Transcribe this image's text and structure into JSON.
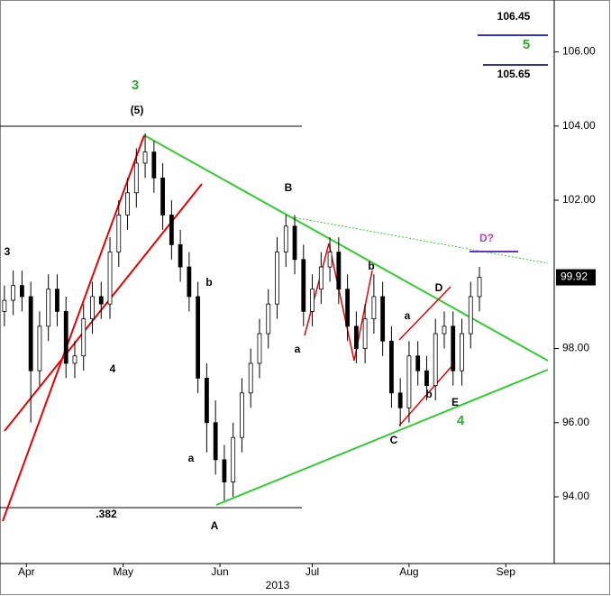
{
  "chart_data": {
    "type": "candlestick",
    "x": [
      0,
      2,
      4,
      6,
      8,
      10,
      12,
      14,
      16,
      18,
      20,
      22,
      24,
      26,
      28,
      30,
      32,
      34,
      36,
      38,
      40,
      42,
      44,
      46,
      48,
      50,
      52,
      54,
      56,
      58,
      60,
      62,
      64,
      66,
      68,
      70,
      72,
      74,
      76,
      78,
      80,
      82,
      84,
      86,
      88,
      90,
      92,
      94,
      96,
      98,
      100,
      102,
      104,
      106,
      108
    ],
    "open": [
      99.0,
      99.3,
      99.7,
      99.4,
      97.4,
      98.6,
      99.6,
      99.0,
      97.6,
      97.8,
      98.8,
      99.4,
      99.2,
      100.6,
      101.6,
      102.2,
      103.0,
      103.3,
      102.6,
      101.6,
      100.8,
      100.2,
      99.4,
      97.2,
      96.0,
      95.0,
      94.4,
      95.6,
      96.8,
      97.6,
      98.4,
      99.2,
      100.6,
      101.3,
      100.4,
      99.0,
      99.6,
      100.2,
      100.6,
      99.6,
      98.6,
      98.0,
      98.8,
      99.4,
      98.2,
      96.8,
      96.4,
      97.8,
      97.4,
      97.0,
      98.4,
      98.6,
      97.4,
      98.4,
      99.4
    ],
    "high": [
      99.7,
      100.1,
      100.1,
      99.8,
      99.0,
      100.0,
      100.0,
      99.4,
      98.2,
      99.2,
      99.8,
      99.8,
      101.0,
      102.0,
      102.6,
      103.4,
      103.8,
      103.6,
      103.0,
      102.0,
      101.2,
      100.6,
      99.8,
      97.6,
      96.6,
      95.4,
      96.0,
      97.2,
      98.0,
      98.8,
      99.6,
      101.0,
      101.6,
      101.6,
      100.8,
      100.0,
      100.6,
      101.0,
      101.0,
      100.0,
      99.0,
      99.2,
      100.0,
      99.8,
      98.6,
      97.2,
      98.2,
      98.2,
      97.8,
      98.8,
      99.0,
      99.0,
      98.8,
      99.8,
      100.2
    ],
    "low": [
      98.6,
      98.9,
      99.0,
      96.0,
      97.0,
      98.2,
      98.6,
      97.2,
      97.2,
      97.4,
      98.4,
      98.8,
      98.8,
      100.2,
      101.2,
      101.8,
      102.6,
      102.2,
      101.2,
      100.4,
      99.8,
      99.0,
      96.8,
      95.2,
      94.6,
      93.9,
      94.0,
      95.2,
      96.4,
      97.2,
      98.0,
      98.8,
      100.2,
      100.0,
      98.6,
      98.6,
      99.2,
      99.8,
      99.2,
      98.2,
      97.6,
      97.6,
      98.4,
      97.8,
      96.4,
      95.9,
      96.0,
      97.0,
      96.6,
      96.6,
      98.0,
      97.0,
      97.0,
      98.0,
      99.0
    ],
    "close": [
      99.3,
      99.7,
      99.4,
      97.4,
      98.6,
      99.6,
      99.0,
      97.6,
      97.8,
      98.8,
      99.4,
      99.2,
      100.6,
      101.6,
      102.2,
      103.0,
      103.3,
      102.6,
      101.6,
      100.8,
      100.2,
      99.4,
      97.2,
      96.0,
      95.0,
      94.4,
      95.6,
      96.8,
      97.6,
      98.4,
      99.2,
      100.6,
      101.3,
      100.4,
      99.0,
      99.6,
      100.2,
      100.6,
      99.6,
      98.6,
      98.0,
      98.8,
      99.4,
      98.2,
      96.8,
      96.4,
      97.8,
      97.4,
      97.0,
      98.4,
      98.6,
      97.4,
      98.4,
      99.4,
      99.92
    ],
    "xlim": [
      -1,
      125
    ],
    "xticks": [
      {
        "value": 5,
        "label": "Apr"
      },
      {
        "value": 27,
        "label": "May"
      },
      {
        "value": 49,
        "label": "Jun"
      },
      {
        "value": 70,
        "label": "Jul"
      },
      {
        "value": 92,
        "label": "Aug"
      },
      {
        "value": 114,
        "label": "Sep"
      }
    ],
    "x_label": "2013",
    "ylim": [
      92.2,
      107.4
    ],
    "yticks": [
      {
        "value": 94,
        "label": "94.00"
      },
      {
        "value": 96,
        "label": "96.00"
      },
      {
        "value": 98,
        "label": "98.00"
      },
      {
        "value": 102,
        "label": "102.00"
      },
      {
        "value": 104,
        "label": "104.00"
      },
      {
        "value": 106,
        "label": "106.00"
      }
    ],
    "last_price": 99.92,
    "target_levels": [
      106.45,
      105.65
    ],
    "annotations": [
      "3",
      "(5)",
      "B",
      "b",
      "a",
      "4",
      "A",
      ".382",
      "a",
      "b",
      "C",
      "a",
      "b",
      "D",
      "E",
      "4",
      "D?",
      "5",
      "3"
    ]
  }
}
